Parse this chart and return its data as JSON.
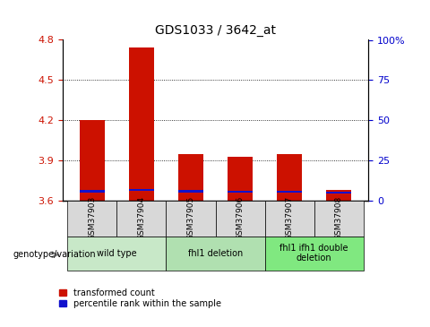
{
  "title": "GDS1033 / 3642_at",
  "samples": [
    "GSM37903",
    "GSM37904",
    "GSM37905",
    "GSM37906",
    "GSM37907",
    "GSM37908"
  ],
  "baseline": 3.6,
  "red_tops": [
    4.2,
    4.74,
    3.95,
    3.93,
    3.95,
    3.68
  ],
  "blue_bottoms": [
    3.662,
    3.672,
    3.662,
    3.66,
    3.658,
    3.65
  ],
  "blue_heights": [
    0.016,
    0.016,
    0.016,
    0.016,
    0.016,
    0.016
  ],
  "ylim_left": [
    3.6,
    4.8
  ],
  "yticks_left": [
    3.6,
    3.9,
    4.2,
    4.5,
    4.8
  ],
  "ylim_right": [
    0,
    100
  ],
  "yticks_right": [
    0,
    25,
    50,
    75,
    100
  ],
  "yticklabels_right": [
    "0",
    "25",
    "50",
    "75",
    "100%"
  ],
  "bar_width": 0.5,
  "bar_color_red": "#cc1100",
  "bar_color_blue": "#1111cc",
  "tick_color_left": "#cc1100",
  "tick_color_right": "#0000cc",
  "sample_bg": "#d8d8d8",
  "group_defs": [
    {
      "label": "wild type",
      "start": 0,
      "end": 1,
      "color": "#c8e8c8"
    },
    {
      "label": "fhl1 deletion",
      "start": 2,
      "end": 3,
      "color": "#b0e0b0"
    },
    {
      "label": "fhl1 ifh1 double\ndeletion",
      "start": 4,
      "end": 5,
      "color": "#80e880"
    }
  ],
  "legend_labels": [
    "transformed count",
    "percentile rank within the sample"
  ]
}
